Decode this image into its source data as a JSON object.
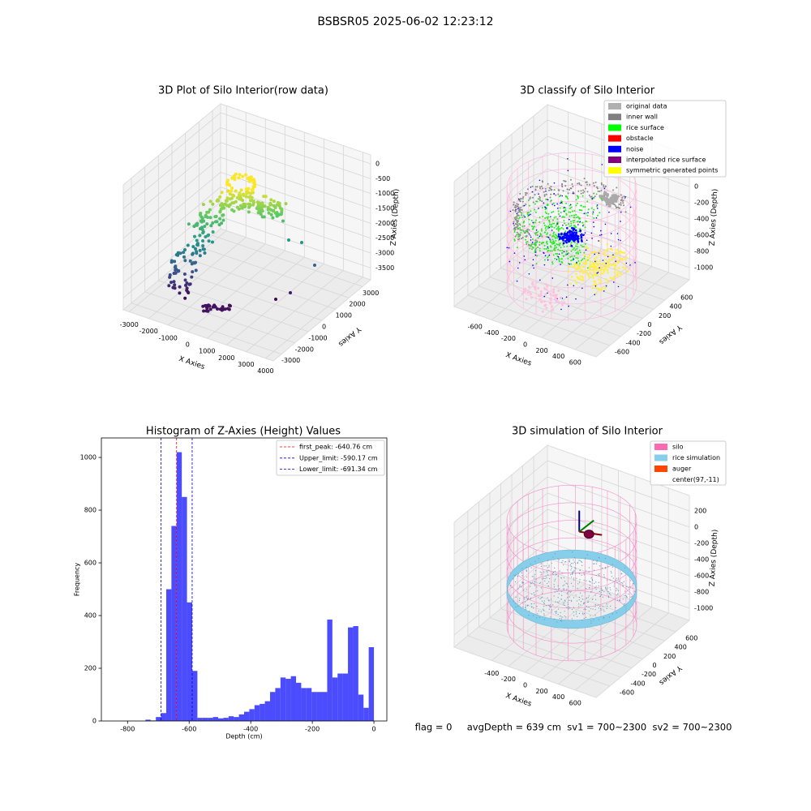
{
  "title": "BSBSR05 2025-06-02 12:23:12",
  "footer": "flag = 0     avgDepth = 639 cm  sv1 = 700~2300  sv2 = 700~2300",
  "chart_data": [
    {
      "type": "scatter3d",
      "title": "3D Plot of Silo Interior(row data)",
      "xlabel": "X Axies",
      "ylabel": "Y Axies",
      "zlabel": "Z Axies (Depth)",
      "xlim": [
        -3300,
        4400
      ],
      "ylim": [
        -3600,
        3600
      ],
      "zlim": [
        -3900,
        300
      ],
      "xticks": [
        -3000,
        -2000,
        -1000,
        0,
        1000,
        2000,
        3000,
        4000
      ],
      "yticks": [
        -3000,
        -2000,
        -1000,
        0,
        1000,
        2000,
        3000
      ],
      "zticks": [
        0,
        -500,
        -1000,
        -1500,
        -2000,
        -2500,
        -3000,
        -3500
      ]
    },
    {
      "type": "classify3d",
      "title": "3D classify of Silo Interior",
      "xlabel": "X Axies",
      "ylabel": "Y Axies",
      "zlabel": "Z Axies (Depth)",
      "xlim": [
        -850,
        850
      ],
      "ylim": [
        -850,
        850
      ],
      "zlim": [
        -1150,
        390
      ],
      "xticks": [
        -600,
        -400,
        -200,
        0,
        200,
        400,
        600
      ],
      "yticks": [
        -600,
        -400,
        -200,
        0,
        200,
        400,
        600
      ],
      "zticks": [
        200,
        0,
        -200,
        -400,
        -600,
        -800,
        -1000
      ],
      "legend": [
        {
          "name": "original data",
          "color": "#b0b0b0"
        },
        {
          "name": "inner wall",
          "color": "#808080"
        },
        {
          "name": "rice surface",
          "color": "#00ff00"
        },
        {
          "name": "obstacle",
          "color": "#ff0000"
        },
        {
          "name": "noise",
          "color": "#0000ff"
        },
        {
          "name": "interpolated rice surface",
          "color": "#800080"
        },
        {
          "name": "symmetric generated points",
          "color": "#ffff00"
        }
      ]
    },
    {
      "type": "histogram",
      "title": "Histogram of Z-Axies (Height) Values",
      "xlabel": "Depth (cm)",
      "ylabel": "Frequency",
      "color": "#0000ff",
      "xlim": [
        -885,
        42
      ],
      "ylim": [
        0,
        1074
      ],
      "xticks": [
        -800,
        -600,
        -400,
        -200,
        0
      ],
      "yticks": [
        0,
        200,
        400,
        600,
        800,
        1000
      ],
      "bins": [
        -843,
        -826.14,
        -809.28,
        -792.42,
        -775.56,
        -758.7,
        -741.84,
        -724.98,
        -708.12,
        -691.26,
        -674.4,
        -657.54,
        -640.68,
        -623.82,
        -606.96,
        -590.1,
        -573.24,
        -556.38,
        -539.52,
        -522.66,
        -505.8,
        -488.94,
        -472.08,
        -455.22,
        -438.36,
        -421.5,
        -404.64,
        -387.78,
        -370.92,
        -354.06,
        -337.2,
        -320.34,
        -303.48,
        -286.62,
        -269.76,
        -252.9,
        -236.04,
        -219.18,
        -202.32,
        -185.46,
        -168.6,
        -151.74,
        -134.88,
        -118.02,
        -101.16,
        -84.3,
        -67.44,
        -50.58,
        -33.72,
        -16.86,
        0
      ],
      "counts": [
        0,
        0,
        0,
        0,
        0,
        0,
        5,
        2,
        15,
        30,
        500,
        740,
        1020,
        850,
        450,
        190,
        12,
        12,
        12,
        15,
        10,
        12,
        18,
        15,
        25,
        35,
        45,
        60,
        65,
        75,
        110,
        125,
        165,
        160,
        170,
        145,
        125,
        125,
        110,
        110,
        110,
        385,
        165,
        180,
        180,
        355,
        360,
        100,
        50,
        280
      ],
      "lines": [
        {
          "name": "first_peak: -640.76 cm",
          "value": -640.76,
          "color": "#ff0000"
        },
        {
          "name": "Upper_limit: -590.17 cm",
          "value": -590.17,
          "color": "#0000cd"
        },
        {
          "name": "Lower_limit: -691.34 cm",
          "value": -691.34,
          "color": "#0000cd"
        }
      ]
    },
    {
      "type": "surface3d",
      "title": "3D simulation of Silo Interior",
      "xlabel": "X Axies",
      "ylabel": "Y Axies",
      "zlabel": "Z Axies (Depth)",
      "xlim": [
        -850,
        850
      ],
      "ylim": [
        -850,
        850
      ],
      "zlim": [
        -1150,
        390
      ],
      "xticks": [
        -400,
        -200,
        0,
        200,
        400,
        600
      ],
      "yticks": [
        -600,
        -400,
        -200,
        0,
        200,
        400,
        600
      ],
      "zticks": [
        200,
        0,
        -200,
        -400,
        -600,
        -800,
        -1000
      ],
      "legend": [
        {
          "name": "silo",
          "color": "#ff69b4"
        },
        {
          "name": "rice simulation",
          "color": "#87ceeb"
        },
        {
          "name": "auger",
          "color": "#ff4500"
        },
        {
          "name": "center(97,-11)"
        }
      ]
    }
  ]
}
